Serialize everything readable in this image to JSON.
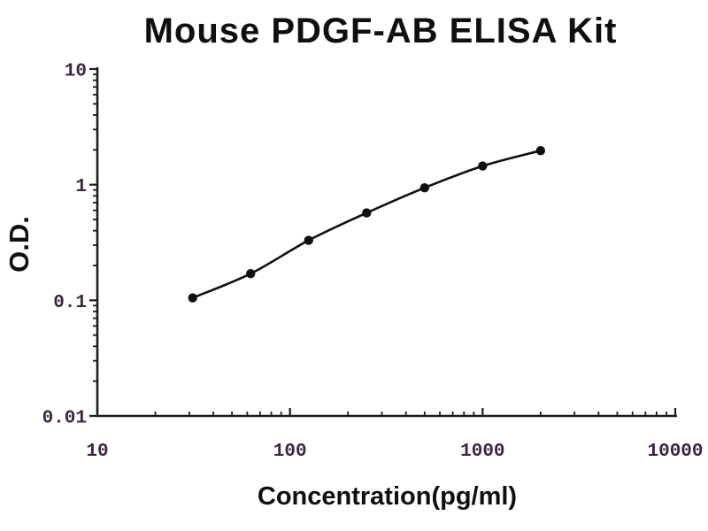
{
  "figure": {
    "background": "#ffffff"
  },
  "chart_data": {
    "type": "line",
    "title": "Mouse PDGF-AB ELISA Kit",
    "xlabel": "Concentration(pg/ml)",
    "ylabel": "O.D.",
    "x_scale": "log",
    "y_scale": "log",
    "xlim": [
      10,
      10000
    ],
    "ylim": [
      0.01,
      10
    ],
    "grid": false,
    "legend": false,
    "series": [
      {
        "name": "standard-curve",
        "marker": "filled-circle",
        "x": [
          31.25,
          62.5,
          125,
          250,
          500,
          1000,
          2000
        ],
        "y": [
          0.105,
          0.17,
          0.33,
          0.57,
          0.94,
          1.45,
          1.97
        ]
      }
    ],
    "x_ticks": [
      {
        "value": 10,
        "label": "10"
      },
      {
        "value": 100,
        "label": "100"
      },
      {
        "value": 1000,
        "label": "1000"
      },
      {
        "value": 10000,
        "label": "10000"
      }
    ],
    "y_ticks": [
      {
        "value": 10,
        "label": "10"
      },
      {
        "value": 1,
        "label": "1"
      },
      {
        "value": 0.1,
        "label": "0.1"
      },
      {
        "value": 0.01,
        "label": "0.01"
      }
    ],
    "colors": {
      "title": "#0f0f0f",
      "axis_label": "#0f0f0f",
      "axis": "#1b1b1b",
      "tick_label": "#3b2740",
      "curve": "#101010"
    }
  }
}
